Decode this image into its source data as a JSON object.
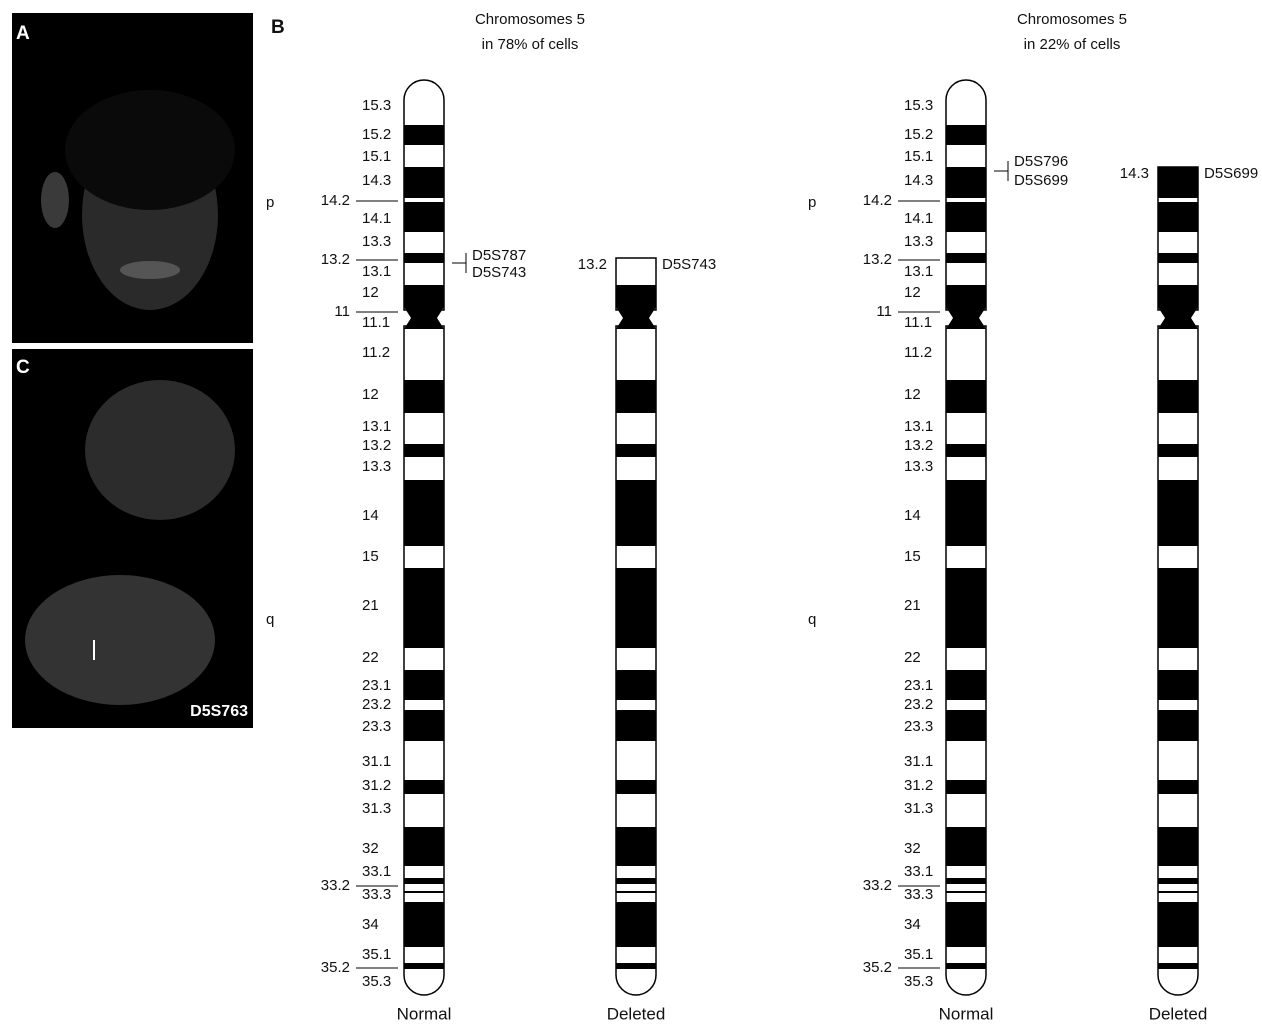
{
  "panels": {
    "A": {
      "label": "A"
    },
    "B": {
      "label": "B"
    },
    "C": {
      "label": "C",
      "probe": "D5S763"
    }
  },
  "groups": [
    {
      "title": [
        "Chromosomes 5",
        "in 78% of cells"
      ],
      "arm_p": "p",
      "arm_q": "q",
      "bands": [
        "15.3",
        "15.2",
        "15.1",
        "14.3",
        "14.1",
        "13.3",
        "13.1",
        "12",
        "11.1",
        "11.2",
        "12",
        "13.1",
        "13.2",
        "13.3",
        "14",
        "15",
        "21",
        "22",
        "23.1",
        "23.2",
        "23.3",
        "31.1",
        "31.2",
        "31.3",
        "32",
        "33.1",
        "33.3",
        "34",
        "35.1",
        "35.3"
      ],
      "boundary_bands": [
        "14.2",
        "13.2",
        "11",
        "33.2",
        "35.2"
      ],
      "markers": [
        "D5S787",
        "D5S743"
      ],
      "deleted_breakpoint": "13.2",
      "deleted_marker": "D5S743",
      "normal_caption": "Normal",
      "deleted_caption": "Deleted"
    },
    {
      "title": [
        "Chromosomes 5",
        "in 22% of cells"
      ],
      "arm_p": "p",
      "arm_q": "q",
      "bands": [
        "15.3",
        "15.2",
        "15.1",
        "14.3",
        "14.1",
        "13.3",
        "13.1",
        "12",
        "11.1",
        "11.2",
        "12",
        "13.1",
        "13.2",
        "13.3",
        "14",
        "15",
        "21",
        "22",
        "23.1",
        "23.2",
        "23.3",
        "31.1",
        "31.2",
        "31.3",
        "32",
        "33.1",
        "33.3",
        "34",
        "35.1",
        "35.3"
      ],
      "boundary_bands": [
        "14.2",
        "13.2",
        "11",
        "33.2",
        "35.2"
      ],
      "markers": [
        "D5S796",
        "D5S699"
      ],
      "deleted_breakpoint": "14.3",
      "deleted_marker": "D5S699",
      "normal_caption": "Normal",
      "deleted_caption": "Deleted"
    }
  ]
}
